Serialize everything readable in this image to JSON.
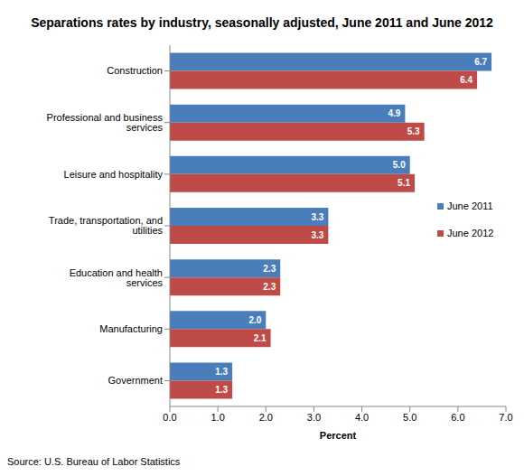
{
  "chart_data": {
    "type": "bar",
    "orientation": "horizontal",
    "title": "Separations rates by industry, seasonally adjusted, June 2011 and June 2012",
    "x_label": "Percent",
    "annotations": [
      "Source: U.S. Bureau of Labor Statistics"
    ],
    "categories": [
      "Construction",
      "Professional and business services",
      "Leisure and hospitality",
      "Trade, transportation, and utilities",
      "Education and health services",
      "Manufacturing",
      "Government"
    ],
    "series": [
      {
        "name": "June 2011",
        "color": "#4a7ebb",
        "values": [
          6.7,
          4.9,
          5.0,
          3.3,
          2.3,
          2.0,
          1.3
        ],
        "value_labels": [
          "6.7",
          "4.9",
          "5.0",
          "3.3",
          "2.3",
          "2.0",
          "1.3"
        ]
      },
      {
        "name": "June 2012",
        "color": "#be4b48",
        "values": [
          6.4,
          5.3,
          5.1,
          3.3,
          2.3,
          2.1,
          1.3
        ],
        "value_labels": [
          "6.4",
          "5.3",
          "5.1",
          "3.3",
          "2.3",
          "2.1",
          "1.3"
        ]
      }
    ],
    "xlim": [
      0,
      7
    ],
    "xticks": [
      {
        "value": 0,
        "label": "0.0"
      },
      {
        "value": 1,
        "label": "1.0"
      },
      {
        "value": 2,
        "label": "2.0"
      },
      {
        "value": 3,
        "label": "3.0"
      },
      {
        "value": 4,
        "label": "4.0"
      },
      {
        "value": 5,
        "label": "5.0"
      },
      {
        "value": 6,
        "label": "6.0"
      },
      {
        "value": 7,
        "label": "7.0"
      }
    ],
    "grid": false,
    "legend": "right",
    "data_labels": true
  }
}
